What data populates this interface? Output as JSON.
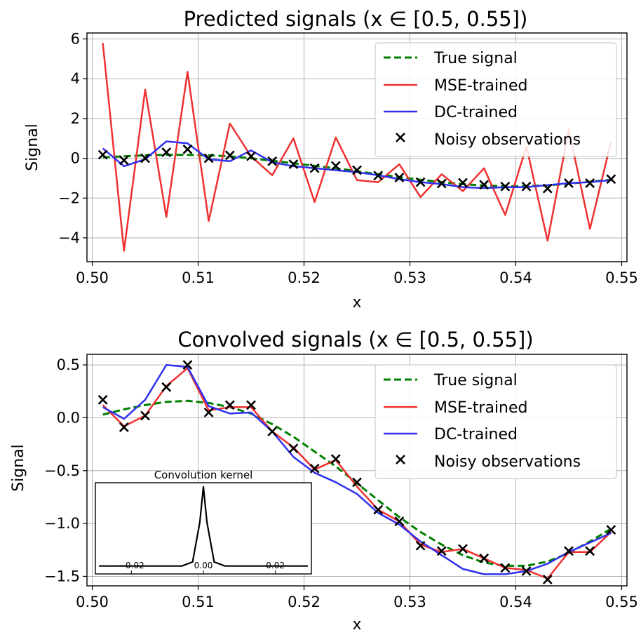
{
  "chart_data": [
    {
      "type": "line",
      "title": "Predicted signals (x ∈ [0.5, 0.55])",
      "xlabel": "x",
      "ylabel": "Signal",
      "xlim": [
        0.4995,
        0.5505
      ],
      "ylim": [
        -5.2,
        6.3
      ],
      "xticks": [
        0.5,
        0.51,
        0.52,
        0.53,
        0.54,
        0.55
      ],
      "xtick_labels": [
        "0.50",
        "0.51",
        "0.52",
        "0.53",
        "0.54",
        "0.55"
      ],
      "yticks": [
        -4,
        -2,
        0,
        2,
        4,
        6
      ],
      "ytick_labels": [
        "−4",
        "−2",
        "0",
        "2",
        "4",
        "6"
      ],
      "grid": true,
      "legend_position": "top-right",
      "x": [
        0.501,
        0.503,
        0.505,
        0.507,
        0.509,
        0.511,
        0.513,
        0.515,
        0.517,
        0.519,
        0.521,
        0.523,
        0.525,
        0.527,
        0.529,
        0.531,
        0.533,
        0.535,
        0.537,
        0.539,
        0.541,
        0.543,
        0.545,
        0.547,
        0.549
      ],
      "series": [
        {
          "name": "True signal",
          "style": "dashed",
          "color": "#008000",
          "values": [
            0.05,
            0.1,
            0.15,
            0.17,
            0.17,
            0.15,
            0.1,
            0.0,
            -0.12,
            -0.25,
            -0.38,
            -0.5,
            -0.65,
            -0.8,
            -0.95,
            -1.08,
            -1.2,
            -1.3,
            -1.37,
            -1.41,
            -1.4,
            -1.36,
            -1.28,
            -1.18,
            -1.08
          ]
        },
        {
          "name": "MSE-trained",
          "style": "solid",
          "color": "#f03030",
          "values": [
            5.8,
            -4.65,
            3.45,
            -2.95,
            4.35,
            -3.15,
            1.75,
            0.1,
            -0.85,
            1.0,
            -2.2,
            1.05,
            -1.1,
            -1.2,
            -0.3,
            -1.95,
            -0.8,
            -1.65,
            -0.5,
            -2.85,
            0.6,
            -4.15,
            1.45,
            -3.55,
            0.85
          ]
        },
        {
          "name": "DC-trained",
          "style": "solid",
          "color": "#3030f0",
          "values": [
            0.5,
            -0.4,
            -0.05,
            0.85,
            0.75,
            -0.05,
            -0.15,
            0.4,
            -0.2,
            -0.4,
            -0.5,
            -0.6,
            -0.7,
            -0.85,
            -1.05,
            -1.2,
            -1.3,
            -1.45,
            -1.5,
            -1.45,
            -1.45,
            -1.35,
            -1.25,
            -1.2,
            -1.1
          ]
        },
        {
          "name": "Noisy observations",
          "style": "marker-x",
          "color": "#000000",
          "values": [
            0.18,
            -0.1,
            0.0,
            0.3,
            0.45,
            0.0,
            0.15,
            0.1,
            -0.15,
            -0.3,
            -0.5,
            -0.38,
            -0.6,
            -0.87,
            -0.97,
            -1.2,
            -1.27,
            -1.23,
            -1.33,
            -1.42,
            -1.42,
            -1.52,
            -1.25,
            -1.25,
            -1.05
          ]
        }
      ]
    },
    {
      "type": "line",
      "title": "Convolved signals (x ∈ [0.5, 0.55])",
      "xlabel": "x",
      "ylabel": "Signal",
      "xlim": [
        0.4995,
        0.5505
      ],
      "ylim": [
        -1.59,
        0.6
      ],
      "xticks": [
        0.5,
        0.51,
        0.52,
        0.53,
        0.54,
        0.55
      ],
      "xtick_labels": [
        "0.50",
        "0.51",
        "0.52",
        "0.53",
        "0.54",
        "0.55"
      ],
      "yticks": [
        0.5,
        0.0,
        -0.5,
        -1.0,
        -1.5
      ],
      "ytick_labels": [
        "0.5",
        "0.0",
        "−0.5",
        "−1.0",
        "−1.5"
      ],
      "grid": true,
      "legend_position": "top-right",
      "x": [
        0.501,
        0.503,
        0.505,
        0.507,
        0.509,
        0.511,
        0.513,
        0.515,
        0.517,
        0.519,
        0.521,
        0.523,
        0.525,
        0.527,
        0.529,
        0.531,
        0.533,
        0.535,
        0.537,
        0.539,
        0.541,
        0.543,
        0.545,
        0.547,
        0.549
      ],
      "series": [
        {
          "name": "True signal",
          "style": "dashed",
          "color": "#008000",
          "values": [
            0.03,
            0.08,
            0.12,
            0.15,
            0.16,
            0.14,
            0.1,
            0.04,
            -0.06,
            -0.18,
            -0.32,
            -0.46,
            -0.62,
            -0.78,
            -0.94,
            -1.08,
            -1.2,
            -1.3,
            -1.37,
            -1.4,
            -1.4,
            -1.36,
            -1.28,
            -1.17,
            -1.05
          ]
        },
        {
          "name": "MSE-trained",
          "style": "solid",
          "color": "#f03030",
          "values": [
            0.12,
            -0.08,
            0.02,
            0.3,
            0.47,
            0.07,
            0.1,
            0.1,
            -0.13,
            -0.28,
            -0.49,
            -0.4,
            -0.65,
            -0.87,
            -0.98,
            -1.2,
            -1.27,
            -1.24,
            -1.33,
            -1.42,
            -1.44,
            -1.52,
            -1.27,
            -1.27,
            -1.08
          ]
        },
        {
          "name": "DC-trained",
          "style": "solid",
          "color": "#3030f0",
          "values": [
            0.1,
            -0.01,
            0.17,
            0.5,
            0.48,
            0.11,
            0.04,
            0.05,
            -0.13,
            -0.37,
            -0.52,
            -0.61,
            -0.72,
            -0.9,
            -1.01,
            -1.17,
            -1.3,
            -1.43,
            -1.48,
            -1.48,
            -1.45,
            -1.38,
            -1.27,
            -1.18,
            -1.09
          ]
        },
        {
          "name": "Noisy observations",
          "style": "marker-x",
          "color": "#000000",
          "values": [
            0.17,
            -0.09,
            0.02,
            0.29,
            0.5,
            0.05,
            0.12,
            0.12,
            -0.13,
            -0.29,
            -0.48,
            -0.39,
            -0.61,
            -0.87,
            -0.98,
            -1.21,
            -1.26,
            -1.24,
            -1.33,
            -1.42,
            -1.45,
            -1.53,
            -1.26,
            -1.26,
            -1.06
          ]
        }
      ],
      "inset": {
        "title": "Convolution kernel",
        "type": "line",
        "xlim": [
          -0.03,
          0.03
        ],
        "ylim": [
          -0.1,
          1.05
        ],
        "xticks": [
          -0.02,
          0.0,
          0.02
        ],
        "xtick_labels": [
          "−0.02",
          "0.00",
          "0.02"
        ],
        "x": [
          -0.029,
          -0.006,
          -0.003,
          -0.001,
          0.0,
          0.001,
          0.003,
          0.006,
          0.029
        ],
        "values": [
          0.0,
          0.0,
          0.05,
          0.55,
          1.0,
          0.55,
          0.05,
          0.0,
          0.0
        ],
        "color": "#000000"
      }
    }
  ]
}
